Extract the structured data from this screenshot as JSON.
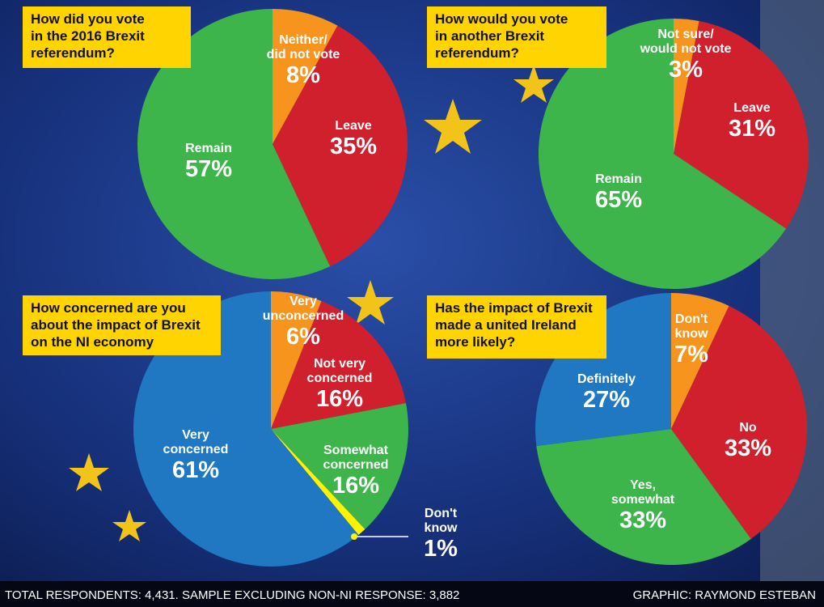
{
  "chart_data": [
    {
      "type": "pie",
      "title": "How did you vote\nin the 2016 Brexit\nreferendum?",
      "categories": [
        "Neither/\ndid not vote",
        "Leave",
        "Remain"
      ],
      "values": [
        8,
        35,
        57
      ],
      "value_labels": [
        "8%",
        "35%",
        "57%"
      ],
      "colors": [
        "#f7941d",
        "#d0202e",
        "#3db54a"
      ]
    },
    {
      "type": "pie",
      "title": "How would you vote\nin another Brexit\nreferendum?",
      "categories": [
        "Not sure/\nwould not vote",
        "Leave",
        "Remain"
      ],
      "values": [
        3,
        31,
        65
      ],
      "value_labels": [
        "3%",
        "31%",
        "65%"
      ],
      "colors": [
        "#f7941d",
        "#d0202e",
        "#3db54a"
      ]
    },
    {
      "type": "pie",
      "title": "How concerned are you\nabout the impact of Brexit\non the NI economy",
      "categories": [
        "Very\nunconcerned",
        "Not very\nconcerned",
        "Somewhat\nconcerned",
        "Don't\nknow",
        "Very\nconcerned"
      ],
      "values": [
        6,
        16,
        16,
        1,
        61
      ],
      "value_labels": [
        "6%",
        "16%",
        "16%",
        "1%",
        "61%"
      ],
      "colors": [
        "#f7941d",
        "#d0202e",
        "#3db54a",
        "#fff200",
        "#1f78c1"
      ]
    },
    {
      "type": "pie",
      "title": "Has the impact of Brexit\nmade a united Ireland\nmore likely?",
      "categories": [
        "Don't\nknow",
        "No",
        "Yes,\nsomewhat",
        "Definitely"
      ],
      "values": [
        7,
        33,
        33,
        27
      ],
      "value_labels": [
        "7%",
        "33%",
        "33%",
        "27%"
      ],
      "colors": [
        "#f7941d",
        "#d0202e",
        "#3db54a",
        "#1f78c1"
      ]
    }
  ],
  "footer": {
    "left": "TOTAL RESPONDENTS: 4,431. SAMPLE EXCLUDING NON-NI RESPONSE: 3,882",
    "right": "GRAPHIC: RAYMOND ESTEBAN"
  }
}
